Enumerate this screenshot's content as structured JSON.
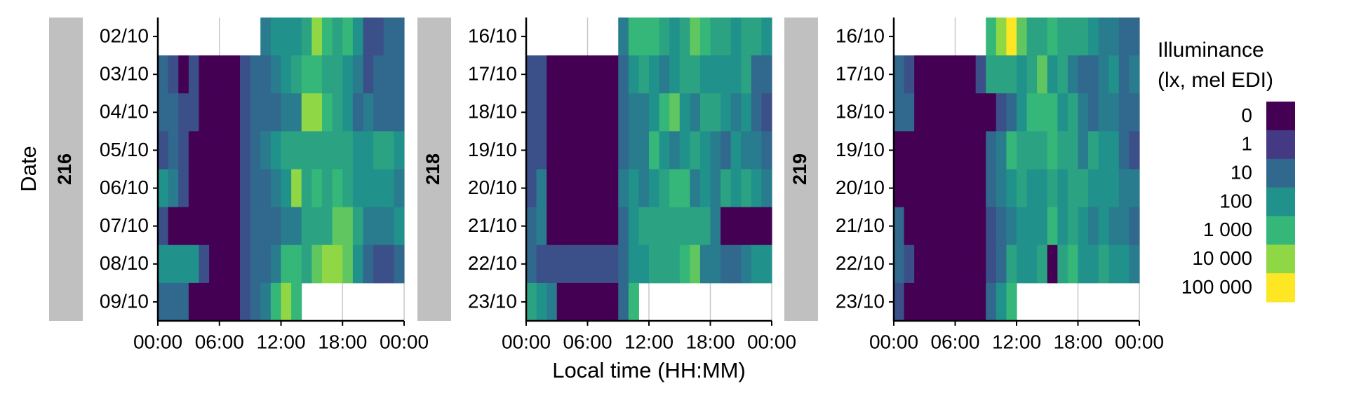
{
  "chart_data": {
    "type": "heatmap",
    "y_label": "Date",
    "x_label": "Local time (HH:MM)",
    "legend_title": [
      "Illuminance",
      "(lx, mel EDI)"
    ],
    "colormap": [
      "#440154",
      "#443983",
      "#31688e",
      "#21918c",
      "#35b779",
      "#8fd744",
      "#fde725"
    ],
    "legend_ticks": [
      0,
      1,
      10,
      100,
      {
        "value": 1000,
        "label": "1 000"
      },
      {
        "value": 10000,
        "label": "10 000"
      },
      {
        "value": 100000,
        "label": "100 000"
      }
    ],
    "xlim": [
      0,
      24
    ],
    "xticks": [
      {
        "value": 0,
        "label": "00:00"
      },
      {
        "value": 6,
        "label": "06:00"
      },
      {
        "value": 12,
        "label": "12:00"
      },
      {
        "value": 18,
        "label": "18:00"
      },
      {
        "value": 24,
        "label": "00:00"
      }
    ],
    "grid": true,
    "bins": [
      0,
      1,
      2,
      3,
      4,
      5,
      6,
      7,
      8,
      9,
      10,
      11,
      12,
      13,
      14,
      15,
      16,
      17,
      18,
      19,
      20,
      21,
      22,
      23,
      24
    ],
    "facets": [
      {
        "label": "216",
        "categories": [
          "02/10",
          "03/10",
          "04/10",
          "05/10",
          "06/10",
          "07/10",
          "08/10",
          "09/10"
        ],
        "values": [
          [
            null,
            null,
            null,
            null,
            null,
            null,
            null,
            null,
            null,
            null,
            30,
            100,
            100,
            100,
            300,
            10000,
            1000,
            300,
            1000,
            100,
            3,
            3,
            10,
            10
          ],
          [
            10,
            3,
            0,
            3,
            0,
            0,
            0,
            0,
            3,
            10,
            10,
            30,
            100,
            300,
            1000,
            1000,
            300,
            300,
            100,
            30,
            3,
            10,
            10,
            10
          ],
          [
            10,
            10,
            3,
            3,
            0,
            0,
            0,
            0,
            3,
            10,
            10,
            10,
            30,
            30,
            10000,
            10000,
            1000,
            300,
            100,
            10,
            30,
            10,
            10,
            10
          ],
          [
            3,
            10,
            3,
            0,
            0,
            0,
            0,
            0,
            3,
            10,
            30,
            100,
            300,
            300,
            300,
            300,
            300,
            300,
            300,
            100,
            100,
            300,
            300,
            100
          ],
          [
            100,
            30,
            3,
            0,
            0,
            0,
            0,
            0,
            3,
            10,
            10,
            30,
            100,
            10000,
            300,
            1000,
            300,
            1000,
            300,
            100,
            100,
            100,
            100,
            30
          ],
          [
            3,
            0,
            0,
            0,
            0,
            0,
            0,
            0,
            3,
            10,
            10,
            10,
            30,
            30,
            300,
            300,
            300,
            3000,
            3000,
            300,
            30,
            30,
            30,
            100
          ],
          [
            100,
            100,
            100,
            100,
            3,
            0,
            0,
            0,
            3,
            10,
            10,
            30,
            1000,
            1000,
            300,
            3000,
            10000,
            10000,
            3000,
            100,
            10,
            3,
            3,
            10
          ],
          [
            10,
            10,
            10,
            0,
            0,
            0,
            0,
            0,
            3,
            10,
            30,
            1000,
            10000,
            1000,
            null,
            null,
            null,
            null,
            null,
            null,
            null,
            null,
            null,
            null
          ]
        ]
      },
      {
        "label": "218",
        "categories": [
          "16/10",
          "17/10",
          "18/10",
          "19/10",
          "20/10",
          "21/10",
          "22/10",
          "23/10"
        ],
        "values": [
          [
            null,
            null,
            null,
            null,
            null,
            null,
            null,
            null,
            null,
            30,
            1000,
            1000,
            1000,
            300,
            100,
            300,
            3000,
            1000,
            300,
            300,
            100,
            300,
            300,
            100
          ],
          [
            3,
            3,
            0,
            0,
            0,
            0,
            0,
            0,
            0,
            10,
            100,
            300,
            100,
            30,
            100,
            300,
            300,
            100,
            100,
            100,
            100,
            300,
            10,
            10
          ],
          [
            3,
            3,
            0,
            0,
            0,
            0,
            0,
            0,
            0,
            10,
            30,
            30,
            100,
            1000,
            3000,
            100,
            30,
            300,
            300,
            100,
            30,
            100,
            10,
            3
          ],
          [
            3,
            3,
            0,
            0,
            0,
            0,
            0,
            0,
            0,
            10,
            30,
            30,
            1000,
            100,
            30,
            100,
            300,
            100,
            30,
            10,
            100,
            30,
            30,
            10
          ],
          [
            3,
            30,
            0,
            0,
            0,
            0,
            0,
            0,
            0,
            30,
            100,
            30,
            100,
            300,
            1000,
            1000,
            30,
            100,
            30,
            300,
            100,
            300,
            100,
            30
          ],
          [
            10,
            30,
            0,
            0,
            0,
            0,
            0,
            0,
            0,
            10,
            100,
            300,
            300,
            300,
            300,
            300,
            300,
            300,
            30,
            0,
            0,
            0,
            0,
            0
          ],
          [
            10,
            3,
            3,
            3,
            3,
            3,
            3,
            3,
            3,
            10,
            100,
            100,
            300,
            300,
            300,
            1000,
            3000,
            30,
            30,
            10,
            10,
            30,
            100,
            100
          ],
          [
            300,
            100,
            30,
            0,
            0,
            0,
            0,
            0,
            0,
            10,
            1000,
            null,
            null,
            null,
            null,
            null,
            null,
            null,
            null,
            null,
            null,
            null,
            null,
            null
          ]
        ]
      },
      {
        "label": "219",
        "categories": [
          "16/10",
          "17/10",
          "18/10",
          "19/10",
          "20/10",
          "21/10",
          "22/10",
          "23/10"
        ],
        "values": [
          [
            null,
            null,
            null,
            null,
            null,
            null,
            null,
            null,
            null,
            1000,
            10000,
            100000,
            3000,
            300,
            300,
            1000,
            300,
            300,
            300,
            100,
            30,
            30,
            10,
            10
          ],
          [
            10,
            3,
            0,
            0,
            0,
            0,
            0,
            0,
            3,
            300,
            300,
            300,
            100,
            300,
            3000,
            100,
            300,
            30,
            10,
            10,
            30,
            100,
            10,
            30
          ],
          [
            10,
            10,
            0,
            0,
            0,
            0,
            0,
            0,
            0,
            0,
            3,
            10,
            100,
            1000,
            1000,
            1000,
            100,
            300,
            30,
            10,
            30,
            30,
            10,
            10
          ],
          [
            0,
            0,
            0,
            0,
            0,
            0,
            0,
            0,
            0,
            10,
            30,
            1000,
            300,
            300,
            300,
            1000,
            300,
            300,
            30,
            300,
            100,
            100,
            10,
            3
          ],
          [
            0,
            0,
            0,
            0,
            0,
            0,
            0,
            0,
            0,
            10,
            30,
            100,
            300,
            100,
            100,
            300,
            100,
            300,
            300,
            100,
            100,
            100,
            30,
            30
          ],
          [
            10,
            0,
            0,
            0,
            0,
            0,
            0,
            0,
            0,
            3,
            10,
            30,
            100,
            100,
            100,
            1000,
            100,
            300,
            100,
            30,
            100,
            30,
            30,
            10
          ],
          [
            10,
            3,
            0,
            0,
            0,
            0,
            0,
            0,
            0,
            3,
            10,
            300,
            100,
            100,
            300,
            0,
            300,
            1000,
            100,
            100,
            300,
            100,
            100,
            30
          ],
          [
            3,
            0,
            0,
            0,
            0,
            0,
            0,
            0,
            0,
            10,
            100,
            1000,
            null,
            null,
            null,
            null,
            null,
            null,
            null,
            null,
            null,
            null,
            null,
            null
          ]
        ]
      }
    ]
  }
}
